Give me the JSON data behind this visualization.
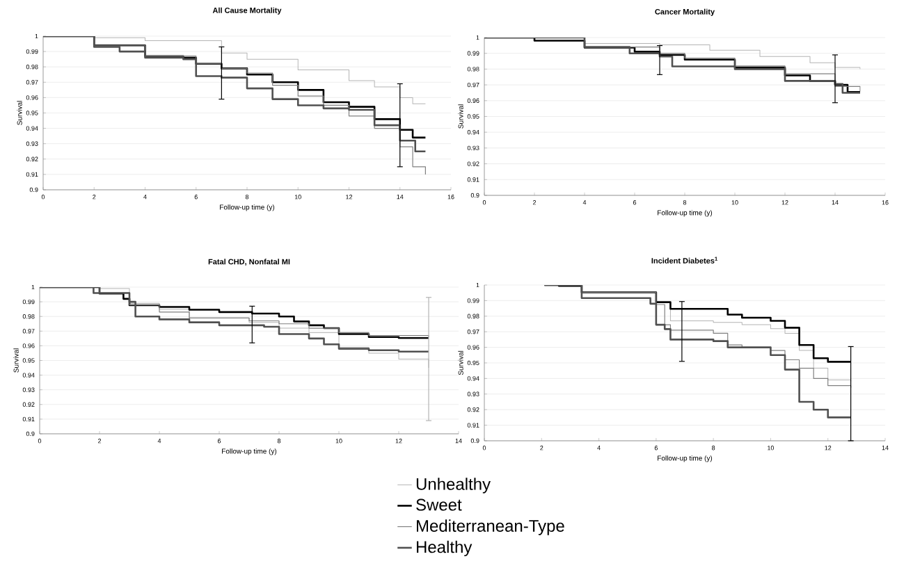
{
  "chart_data": [
    {
      "type": "step",
      "title": "All Cause Mortality",
      "xlabel": "Follow-up time (y)",
      "ylabel": "Survival",
      "xlim": [
        0,
        16
      ],
      "xticks": [
        0,
        2,
        4,
        6,
        8,
        10,
        12,
        14,
        16
      ],
      "ylim": [
        0.9,
        1
      ],
      "yticks": [
        0.9,
        0.91,
        0.92,
        0.93,
        0.94,
        0.95,
        0.96,
        0.97,
        0.98,
        0.99,
        1
      ],
      "grid": "y",
      "series": [
        {
          "color": "#b4b4b4",
          "x": [
            0,
            2,
            4,
            7,
            8,
            10,
            12,
            13,
            14,
            14.5,
            15
          ],
          "values": [
            1,
            0.999,
            0.997,
            0.989,
            0.985,
            0.978,
            0.971,
            0.967,
            0.96,
            0.956,
            0.956
          ]
        },
        {
          "color": "#000000",
          "x": [
            0,
            2,
            4,
            5.5,
            6,
            7,
            8,
            9,
            10,
            11,
            12,
            13,
            14,
            14.5,
            15
          ],
          "values": [
            1,
            0.994,
            0.987,
            0.986,
            0.982,
            0.979,
            0.975,
            0.97,
            0.965,
            0.957,
            0.954,
            0.946,
            0.939,
            0.934,
            0.934
          ],
          "errors": [
            null,
            null,
            null,
            null,
            null,
            [
              0.959,
              0.993
            ],
            null,
            null,
            null,
            null,
            null,
            null,
            [
              0.915,
              0.969
            ],
            null,
            null
          ]
        },
        {
          "color": "#808080",
          "x": [
            0,
            2,
            4,
            6,
            7,
            8,
            9,
            10,
            11,
            12,
            13,
            14,
            14.5,
            15
          ],
          "values": [
            1,
            0.994,
            0.987,
            0.982,
            0.979,
            0.976,
            0.968,
            0.961,
            0.955,
            0.948,
            0.94,
            0.928,
            0.915,
            0.91
          ]
        },
        {
          "color": "#505050",
          "x": [
            0,
            2,
            3,
            4,
            5.5,
            6,
            7,
            8,
            9,
            10,
            11,
            12,
            13,
            14,
            14.6,
            15
          ],
          "values": [
            1,
            0.993,
            0.99,
            0.986,
            0.985,
            0.974,
            0.973,
            0.966,
            0.959,
            0.955,
            0.953,
            0.952,
            0.942,
            0.932,
            0.925,
            0.925
          ]
        }
      ]
    },
    {
      "type": "step",
      "title": "Cancer Mortality",
      "xlabel": "Follow-up time (y)",
      "ylabel": "Survival",
      "xlim": [
        0,
        16
      ],
      "xticks": [
        0,
        2,
        4,
        6,
        8,
        10,
        12,
        14,
        16
      ],
      "ylim": [
        0.9,
        1
      ],
      "yticks": [
        0.9,
        0.91,
        0.92,
        0.93,
        0.94,
        0.95,
        0.96,
        0.97,
        0.98,
        0.99,
        1
      ],
      "grid": "y",
      "series": [
        {
          "color": "#b4b4b4",
          "x": [
            0,
            2,
            4,
            7,
            9,
            11,
            13,
            14,
            15
          ],
          "values": [
            1,
            0.998,
            0.9963,
            0.9954,
            0.992,
            0.988,
            0.984,
            0.981,
            0.98
          ]
        },
        {
          "color": "#000000",
          "x": [
            0,
            2,
            4,
            5.5,
            6,
            7,
            8,
            10,
            12,
            13,
            14,
            14.5,
            15
          ],
          "values": [
            1,
            0.998,
            0.9936,
            0.9936,
            0.991,
            0.989,
            0.986,
            0.981,
            0.976,
            0.9725,
            0.97,
            0.9655,
            0.9655
          ],
          "errors": [
            null,
            null,
            null,
            null,
            null,
            [
              0.9765,
              0.9949
            ],
            null,
            null,
            null,
            null,
            [
              0.9587,
              0.989
            ],
            null,
            null
          ]
        },
        {
          "color": "#808080",
          "x": [
            0,
            4,
            7,
            8,
            10,
            12,
            14,
            15
          ],
          "values": [
            1,
            0.994,
            0.99,
            0.987,
            0.982,
            0.977,
            0.969,
            0.966
          ]
        },
        {
          "color": "#505050",
          "x": [
            0,
            4,
            5.8,
            7,
            7.5,
            10,
            12,
            14,
            14.3,
            15
          ],
          "values": [
            1,
            0.994,
            0.99,
            0.988,
            0.9817,
            0.98,
            0.9725,
            0.9706,
            0.965,
            0.965
          ]
        }
      ]
    },
    {
      "type": "step",
      "title": "Fatal CHD, Nonfatal MI",
      "xlabel": "Follow-up time (y)",
      "ylabel": "Survival",
      "xlim": [
        0,
        14
      ],
      "xticks": [
        0,
        2,
        4,
        6,
        8,
        10,
        12,
        14
      ],
      "ylim": [
        0.9,
        1
      ],
      "yticks": [
        0.9,
        0.91,
        0.92,
        0.93,
        0.94,
        0.95,
        0.96,
        0.97,
        0.98,
        0.99,
        1
      ],
      "grid": "y",
      "series": [
        {
          "color": "#b4b4b4",
          "x": [
            0,
            1.8,
            2,
            3,
            4,
            5,
            7,
            8,
            9,
            10,
            11,
            12,
            13
          ],
          "values": [
            1,
            1,
            0.999,
            0.989,
            0.985,
            0.979,
            0.976,
            0.972,
            0.969,
            0.959,
            0.955,
            0.951,
            0.945
          ],
          "errors": [
            null,
            null,
            null,
            null,
            null,
            null,
            null,
            null,
            null,
            null,
            null,
            null,
            [
              0.909,
              0.993
            ]
          ]
        },
        {
          "color": "#000000",
          "x": [
            0,
            2,
            2.8,
            3,
            4,
            5,
            6,
            7.1,
            8,
            8.5,
            9,
            9.5,
            10,
            11,
            12,
            13
          ],
          "values": [
            1,
            0.9956,
            0.992,
            0.9877,
            0.9865,
            0.9846,
            0.983,
            0.982,
            0.98,
            0.9766,
            0.974,
            0.972,
            0.968,
            0.966,
            0.9653,
            0.9653
          ],
          "errors": [
            null,
            null,
            null,
            null,
            null,
            null,
            null,
            [
              0.962,
              0.987
            ],
            null,
            null,
            null,
            null,
            null,
            null,
            null,
            null
          ]
        },
        {
          "color": "#808080",
          "x": [
            0,
            2,
            3,
            4,
            5,
            7,
            8,
            9,
            10,
            11,
            13
          ],
          "values": [
            1,
            0.996,
            0.988,
            0.983,
            0.979,
            0.977,
            0.975,
            0.972,
            0.969,
            0.967,
            0.966
          ]
        },
        {
          "color": "#505050",
          "x": [
            0,
            1.8,
            3,
            3.2,
            4,
            5,
            6,
            7.5,
            8,
            9,
            9.5,
            10,
            11,
            12,
            13
          ],
          "values": [
            1,
            0.996,
            0.99,
            0.98,
            0.978,
            0.976,
            0.974,
            0.973,
            0.968,
            0.965,
            0.961,
            0.958,
            0.957,
            0.956,
            0.956
          ]
        }
      ]
    },
    {
      "type": "step",
      "title": "Incident Diabetes$^{1}$",
      "xlabel": "Follow-up time (y)",
      "ylabel": "Survival",
      "xlim": [
        0,
        14
      ],
      "xticks": [
        0,
        2,
        4,
        6,
        8,
        10,
        12,
        14
      ],
      "ylim": [
        0.9,
        1
      ],
      "yticks": [
        0.9,
        0.91,
        0.92,
        0.93,
        0.94,
        0.95,
        0.96,
        0.97,
        0.98,
        0.99,
        1
      ],
      "grid": "y",
      "legend": "bottom",
      "series": [
        {
          "name": "Unhealthy",
          "color": "#b4b4b4",
          "x": [
            2.1,
            2.6,
            3.4,
            6,
            6.5,
            8,
            9,
            10,
            10.5,
            11,
            11.5,
            12,
            12.8
          ],
          "values": [
            1,
            0.9995,
            0.9953,
            0.989,
            0.977,
            0.976,
            0.9745,
            0.972,
            0.969,
            0.958,
            0.9466,
            0.939,
            0.938
          ]
        },
        {
          "name": "Sweet",
          "color": "#000000",
          "x": [
            2.1,
            2.6,
            3.4,
            5,
            6,
            6.5,
            6.9,
            8,
            8.5,
            9,
            10,
            10.5,
            11,
            11.5,
            12,
            12.8
          ],
          "values": [
            1,
            0.9995,
            0.9953,
            0.9953,
            0.989,
            0.9847,
            0.9847,
            0.9847,
            0.981,
            0.979,
            0.977,
            0.9726,
            0.9615,
            0.953,
            0.9507,
            0.9507
          ],
          "errors": [
            null,
            null,
            null,
            null,
            null,
            null,
            [
              0.951,
              0.9894
            ],
            null,
            null,
            null,
            null,
            null,
            null,
            null,
            null,
            [
              0.9,
              0.9605
            ]
          ]
        },
        {
          "name": "Mediterranean-Type",
          "color": "#808080",
          "x": [
            2.1,
            3.4,
            5,
            6,
            6.3,
            6.5,
            8,
            8.5,
            9,
            10,
            10.5,
            11,
            11.5,
            12,
            12.8
          ],
          "values": [
            1,
            0.9953,
            0.9953,
            0.9875,
            0.9745,
            0.971,
            0.969,
            0.9615,
            0.96,
            0.958,
            0.952,
            0.9466,
            0.94,
            0.9354,
            0.934
          ]
        },
        {
          "name": "Healthy",
          "color": "#505050",
          "x": [
            2.1,
            3.4,
            5,
            5.8,
            6,
            6.3,
            6.5,
            8,
            8.5,
            10,
            10.5,
            11,
            11.5,
            12,
            12.8
          ],
          "values": [
            1,
            0.9916,
            0.9916,
            0.988,
            0.9745,
            0.9717,
            0.965,
            0.964,
            0.96,
            0.955,
            0.9457,
            0.925,
            0.92,
            0.915,
            0.915
          ]
        }
      ]
    }
  ]
}
